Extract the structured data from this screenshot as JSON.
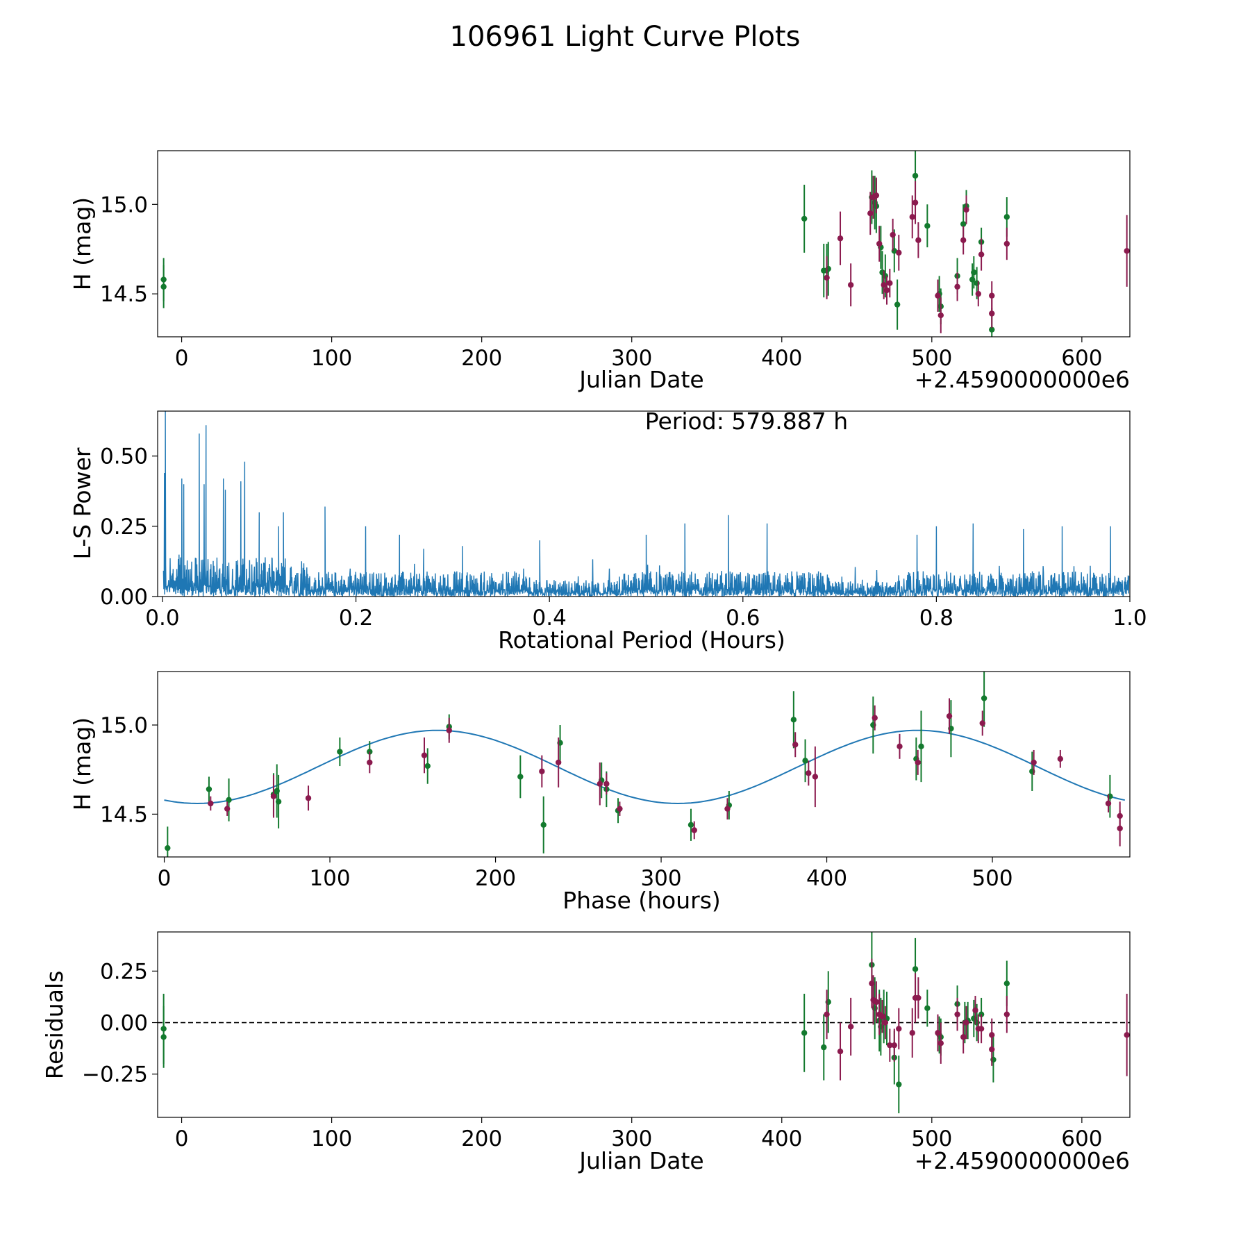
{
  "title": "106961 Light Curve Plots",
  "colors": {
    "green": "#137a2e",
    "maroon": "#8b1a4e",
    "blue": "#1f77b4",
    "black": "#000000"
  },
  "chart_data": [
    {
      "type": "scatter",
      "id": "lightcurve",
      "xlabel": "Julian Date",
      "ylabel": "H (mag)",
      "offset_label": "+2.4590000000e6",
      "xlim": [
        -16,
        632
      ],
      "ylim": [
        14.26,
        15.3
      ],
      "y_inverted": false,
      "xticks": [
        0,
        100,
        200,
        300,
        400,
        500,
        600
      ],
      "yticks": [
        14.5,
        15.0
      ],
      "ytick_labels": [
        "14.5",
        "15.0"
      ],
      "series": [
        {
          "name": "green",
          "color": "#137a2e",
          "points": [
            [
              -12,
              14.58,
              0.12
            ],
            [
              -12,
              14.54,
              0.12
            ],
            [
              415,
              14.92,
              0.19
            ],
            [
              428,
              14.63,
              0.15
            ],
            [
              430,
              14.63,
              0.15
            ],
            [
              431,
              14.64,
              0.15
            ],
            [
              460,
              15.04,
              0.15
            ],
            [
              462,
              15.01,
              0.15
            ],
            [
              463,
              14.99,
              0.15
            ],
            [
              466,
              14.76,
              0.12
            ],
            [
              467,
              14.62,
              0.12
            ],
            [
              469,
              14.6,
              0.12
            ],
            [
              475,
              14.74,
              0.12
            ],
            [
              477,
              14.44,
              0.14
            ],
            [
              489,
              15.16,
              0.16
            ],
            [
              497,
              14.88,
              0.12
            ],
            [
              505,
              14.5,
              0.1
            ],
            [
              506,
              14.43,
              0.1
            ],
            [
              517,
              14.6,
              0.1
            ],
            [
              521,
              14.89,
              0.11
            ],
            [
              523,
              14.99,
              0.09
            ],
            [
              527,
              14.58,
              0.09
            ],
            [
              528,
              14.62,
              0.09
            ],
            [
              530,
              14.56,
              0.09
            ],
            [
              533,
              14.79,
              0.08
            ],
            [
              540,
              14.3,
              0.12
            ],
            [
              550,
              14.93,
              0.11
            ]
          ]
        },
        {
          "name": "maroon",
          "color": "#8b1a4e",
          "points": [
            [
              430,
              14.59,
              0.12
            ],
            [
              439,
              14.81,
              0.15
            ],
            [
              446,
              14.55,
              0.12
            ],
            [
              459,
              14.95,
              0.12
            ],
            [
              461,
              15.04,
              0.12
            ],
            [
              463,
              15.05,
              0.1
            ],
            [
              465,
              14.78,
              0.1
            ],
            [
              468,
              14.55,
              0.08
            ],
            [
              470,
              14.52,
              0.08
            ],
            [
              472,
              14.56,
              0.08
            ],
            [
              474,
              14.83,
              0.09
            ],
            [
              478,
              14.73,
              0.1
            ],
            [
              487,
              14.93,
              0.12
            ],
            [
              489,
              15.01,
              0.12
            ],
            [
              491,
              14.8,
              0.1
            ],
            [
              504,
              14.49,
              0.09
            ],
            [
              506,
              14.38,
              0.1
            ],
            [
              517,
              14.54,
              0.08
            ],
            [
              521,
              14.8,
              0.08
            ],
            [
              523,
              14.97,
              0.08
            ],
            [
              531,
              14.5,
              0.07
            ],
            [
              533,
              14.72,
              0.09
            ],
            [
              540,
              14.49,
              0.08
            ],
            [
              540,
              14.39,
              0.08
            ],
            [
              550,
              14.78,
              0.09
            ],
            [
              630,
              14.74,
              0.2
            ]
          ]
        }
      ]
    },
    {
      "type": "line",
      "id": "periodogram",
      "xlabel": "Rotational Period (Hours)",
      "ylabel": "L-S Power",
      "annotation": "Period: 579.887 h",
      "xlim": [
        -0.005,
        1.0
      ],
      "ylim": [
        0.0,
        0.66
      ],
      "xticks": [
        0.0,
        0.2,
        0.4,
        0.6,
        0.8,
        1.0
      ],
      "xtick_labels": [
        "0.0",
        "0.2",
        "0.4",
        "0.6",
        "0.8",
        "1.0"
      ],
      "yticks": [
        0.0,
        0.25,
        0.5
      ],
      "ytick_labels": [
        "0.00",
        "0.25",
        "0.50"
      ],
      "color": "#1f77b4",
      "peaks": [
        [
          0.003,
          0.66
        ],
        [
          0.002,
          0.44
        ],
        [
          0.02,
          0.42
        ],
        [
          0.022,
          0.4
        ],
        [
          0.038,
          0.58
        ],
        [
          0.045,
          0.61
        ],
        [
          0.043,
          0.4
        ],
        [
          0.063,
          0.42
        ],
        [
          0.065,
          0.38
        ],
        [
          0.081,
          0.41
        ],
        [
          0.085,
          0.48
        ],
        [
          0.1,
          0.3
        ],
        [
          0.12,
          0.25
        ],
        [
          0.125,
          0.3
        ],
        [
          0.168,
          0.32
        ],
        [
          0.21,
          0.25
        ],
        [
          0.245,
          0.22
        ],
        [
          0.27,
          0.17
        ],
        [
          0.31,
          0.18
        ],
        [
          0.39,
          0.2
        ],
        [
          0.5,
          0.22
        ],
        [
          0.54,
          0.26
        ],
        [
          0.585,
          0.29
        ],
        [
          0.625,
          0.26
        ],
        [
          0.78,
          0.22
        ],
        [
          0.8,
          0.25
        ],
        [
          0.838,
          0.26
        ],
        [
          0.89,
          0.24
        ],
        [
          0.93,
          0.25
        ],
        [
          0.98,
          0.25
        ]
      ]
    },
    {
      "type": "scatter",
      "id": "phased",
      "xlabel": "Phase (hours)",
      "ylabel": "H (mag)",
      "xlim": [
        -4,
        583
      ],
      "ylim": [
        14.26,
        15.3
      ],
      "xticks": [
        0,
        100,
        200,
        300,
        400,
        500
      ],
      "yticks": [
        14.5,
        15.0
      ],
      "ytick_labels": [
        "14.5",
        "15.0"
      ],
      "model": {
        "mean": 14.765,
        "amplitude": 0.205,
        "period": 289.94,
        "peak_phase": 165,
        "color": "#1f77b4"
      },
      "series": [
        {
          "name": "green",
          "color": "#137a2e",
          "points": [
            [
              2,
              14.31,
              0.12
            ],
            [
              27,
              14.64,
              0.07
            ],
            [
              39,
              14.58,
              0.12
            ],
            [
              66,
              14.61,
              0.12
            ],
            [
              68,
              14.63,
              0.15
            ],
            [
              69,
              14.57,
              0.15
            ],
            [
              106,
              14.85,
              0.08
            ],
            [
              124,
              14.85,
              0.06
            ],
            [
              159,
              14.77,
              0.1
            ],
            [
              172,
              14.99,
              0.07
            ],
            [
              215,
              14.71,
              0.12
            ],
            [
              229,
              14.44,
              0.16
            ],
            [
              239,
              14.9,
              0.1
            ],
            [
              264,
              14.69,
              0.1
            ],
            [
              267,
              14.64,
              0.1
            ],
            [
              274,
              14.52,
              0.07
            ],
            [
              318,
              14.44,
              0.09
            ],
            [
              341,
              14.55,
              0.08
            ],
            [
              380,
              15.03,
              0.16
            ],
            [
              387,
              14.8,
              0.12
            ],
            [
              428,
              15.0,
              0.16
            ],
            [
              454,
              14.81,
              0.12
            ],
            [
              457,
              14.88,
              0.2
            ],
            [
              475,
              14.98,
              0.16
            ],
            [
              495,
              15.15,
              0.16
            ],
            [
              524,
              14.74,
              0.11
            ],
            [
              571,
              14.6,
              0.12
            ]
          ]
        },
        {
          "name": "maroon",
          "color": "#8b1a4e",
          "points": [
            [
              28,
              14.56,
              0.04
            ],
            [
              38,
              14.53,
              0.04
            ],
            [
              66,
              14.6,
              0.12
            ],
            [
              87,
              14.59,
              0.07
            ],
            [
              124,
              14.79,
              0.06
            ],
            [
              157,
              14.83,
              0.1
            ],
            [
              172,
              14.97,
              0.07
            ],
            [
              228,
              14.74,
              0.09
            ],
            [
              238,
              14.79,
              0.14
            ],
            [
              263,
              14.67,
              0.12
            ],
            [
              267,
              14.67,
              0.06
            ],
            [
              275,
              14.53,
              0.04
            ],
            [
              320,
              14.41,
              0.05
            ],
            [
              340,
              14.53,
              0.06
            ],
            [
              381,
              14.89,
              0.07
            ],
            [
              389,
              14.73,
              0.07
            ],
            [
              393,
              14.71,
              0.17
            ],
            [
              429,
              15.04,
              0.07
            ],
            [
              444,
              14.88,
              0.07
            ],
            [
              455,
              14.79,
              0.07
            ],
            [
              474,
              15.05,
              0.1
            ],
            [
              494,
              15.01,
              0.07
            ],
            [
              525,
              14.79,
              0.07
            ],
            [
              541,
              14.81,
              0.05
            ],
            [
              570,
              14.56,
              0.05
            ],
            [
              577,
              14.49,
              0.08
            ],
            [
              577,
              14.42,
              0.1
            ]
          ]
        }
      ]
    },
    {
      "type": "scatter",
      "id": "residuals",
      "xlabel": "Julian Date",
      "ylabel": "Residuals",
      "offset_label": "+2.4590000000e6",
      "xlim": [
        -16,
        632
      ],
      "ylim": [
        -0.46,
        0.44
      ],
      "xticks": [
        0,
        100,
        200,
        300,
        400,
        500,
        600
      ],
      "yticks": [
        -0.25,
        0.0,
        0.25
      ],
      "ytick_labels": [
        "−0.25",
        "0.00",
        "0.25"
      ],
      "zero_line": 0,
      "series": [
        {
          "name": "green",
          "color": "#137a2e",
          "points": [
            [
              -12,
              -0.03,
              0.17
            ],
            [
              -12,
              -0.07,
              0.15
            ],
            [
              415,
              -0.05,
              0.19
            ],
            [
              428,
              -0.12,
              0.16
            ],
            [
              431,
              0.1,
              0.15
            ],
            [
              460,
              0.28,
              0.17
            ],
            [
              462,
              0.07,
              0.15
            ],
            [
              465,
              0.01,
              0.15
            ],
            [
              466,
              -0.02,
              0.14
            ],
            [
              468,
              0.03,
              0.13
            ],
            [
              470,
              0.02,
              0.13
            ],
            [
              475,
              -0.17,
              0.13
            ],
            [
              478,
              -0.3,
              0.14
            ],
            [
              489,
              0.26,
              0.15
            ],
            [
              497,
              0.07,
              0.09
            ],
            [
              505,
              -0.06,
              0.09
            ],
            [
              506,
              -0.07,
              0.09
            ],
            [
              517,
              0.09,
              0.09
            ],
            [
              522,
              0.0,
              0.1
            ],
            [
              524,
              0.01,
              0.09
            ],
            [
              528,
              0.02,
              0.09
            ],
            [
              530,
              0.0,
              0.09
            ],
            [
              533,
              0.04,
              0.08
            ],
            [
              541,
              -0.18,
              0.11
            ],
            [
              550,
              0.19,
              0.11
            ]
          ]
        },
        {
          "name": "maroon",
          "color": "#8b1a4e",
          "points": [
            [
              430,
              0.04,
              0.12
            ],
            [
              439,
              -0.14,
              0.14
            ],
            [
              446,
              -0.02,
              0.14
            ],
            [
              460,
              0.19,
              0.12
            ],
            [
              461,
              0.11,
              0.12
            ],
            [
              463,
              0.1,
              0.1
            ],
            [
              465,
              0.04,
              0.1
            ],
            [
              467,
              0.03,
              0.08
            ],
            [
              469,
              0.0,
              0.08
            ],
            [
              472,
              -0.11,
              0.08
            ],
            [
              475,
              -0.11,
              0.08
            ],
            [
              478,
              -0.03,
              0.1
            ],
            [
              487,
              -0.05,
              0.12
            ],
            [
              489,
              0.12,
              0.12
            ],
            [
              491,
              0.12,
              0.1
            ],
            [
              504,
              -0.05,
              0.09
            ],
            [
              506,
              -0.1,
              0.1
            ],
            [
              517,
              0.04,
              0.08
            ],
            [
              521,
              -0.07,
              0.08
            ],
            [
              523,
              0.0,
              0.08
            ],
            [
              529,
              0.06,
              0.07
            ],
            [
              531,
              -0.03,
              0.07
            ],
            [
              533,
              -0.03,
              0.07
            ],
            [
              540,
              -0.13,
              0.08
            ],
            [
              540,
              -0.06,
              0.08
            ],
            [
              550,
              0.04,
              0.09
            ],
            [
              630,
              -0.06,
              0.2
            ]
          ]
        }
      ]
    }
  ]
}
